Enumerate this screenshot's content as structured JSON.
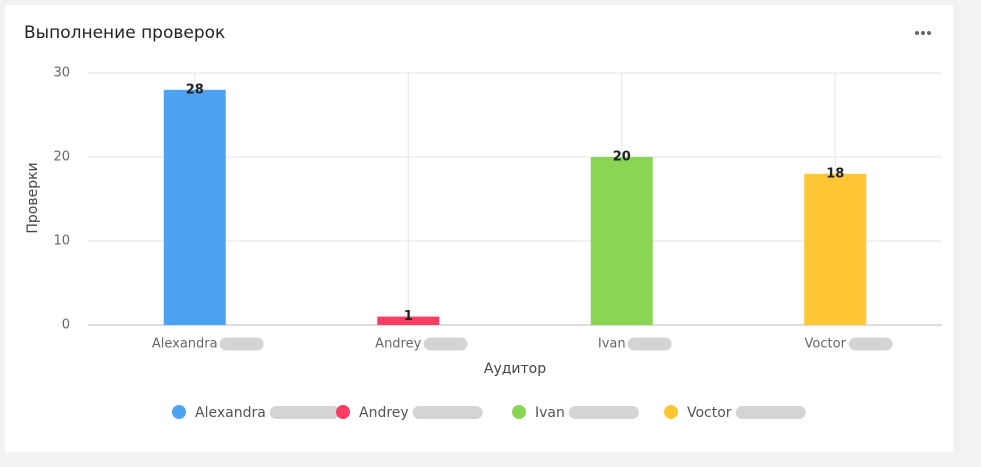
{
  "chart_data": {
    "type": "bar",
    "title": "Выполнение проверок",
    "categories": [
      "Alexandra",
      "Andrey",
      "Ivan",
      "Voctor"
    ],
    "values": [
      28,
      1,
      20,
      18
    ],
    "colors": [
      "#4da2f1",
      "#ff3d64",
      "#8ad554",
      "#ffc636"
    ],
    "x_label": "Аудитор",
    "y_label": "Проверки",
    "ylim": [
      0,
      30
    ],
    "yticks": [
      0,
      10,
      20,
      30
    ],
    "grid": true,
    "legend": "bottom"
  }
}
